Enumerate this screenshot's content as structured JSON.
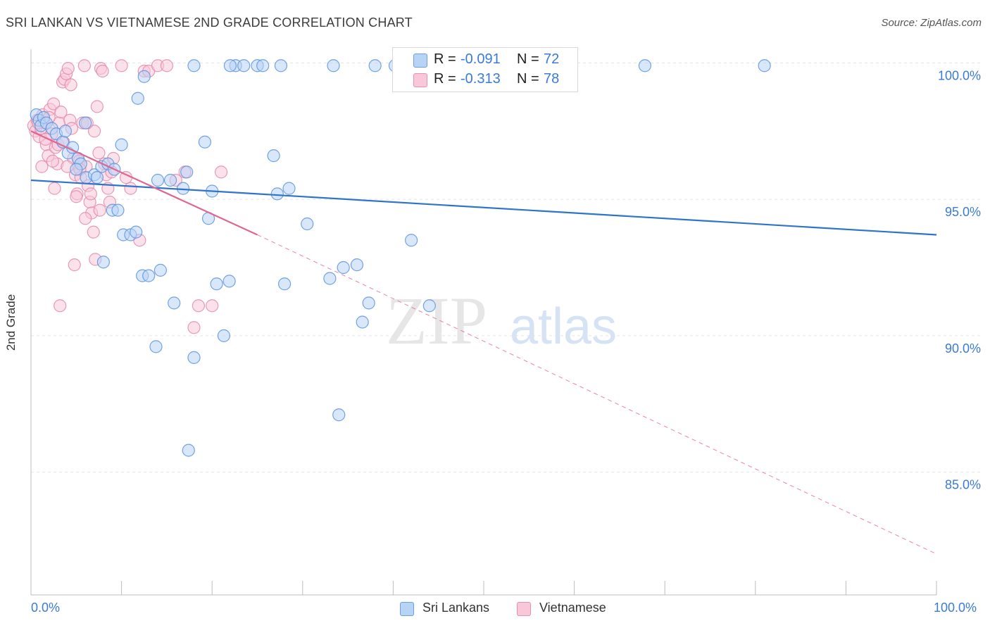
{
  "title": "SRI LANKAN VS VIETNAMESE 2ND GRADE CORRELATION CHART",
  "source": "Source: ZipAtlas.com",
  "watermark": {
    "zip": "ZIP",
    "atlas": "atlas"
  },
  "legend_top": {
    "rows": [
      {
        "r_label": "R =",
        "r_value": "-0.091",
        "n_label": "N =",
        "n_value": "72"
      },
      {
        "r_label": "R =",
        "r_value": "-0.313",
        "n_label": "N =",
        "n_value": "78"
      }
    ]
  },
  "colors": {
    "blue_fill": "#b8d4f5",
    "blue_stroke": "#5d93dc",
    "blue_line": "#2f74cc",
    "pink_fill": "#f8c8d8",
    "pink_stroke": "#e38aaa",
    "pink_line": "#e06690",
    "grid": "#e5e5e5",
    "tick_text": "#3a7bd5"
  },
  "chart_data": {
    "type": "scatter",
    "title": "SRI LANKAN VS VIETNAMESE 2ND GRADE CORRELATION CHART",
    "xlabel": "",
    "ylabel": "2nd Grade",
    "xlim": [
      0,
      100
    ],
    "ylim": [
      80.5,
      100.5
    ],
    "x_tick_labels": [
      "0.0%",
      "100.0%"
    ],
    "y_ticks": [
      85,
      90,
      95,
      100
    ],
    "y_tick_labels": [
      "85.0%",
      "90.0%",
      "95.0%",
      "100.0%"
    ],
    "legend": [
      "Sri Lankans",
      "Vietnamese"
    ],
    "series": [
      {
        "name": "Sri Lankans",
        "r": -0.091,
        "n": 72,
        "trend": {
          "x": [
            0,
            100
          ],
          "y": [
            95.7,
            93.7
          ]
        },
        "points": [
          [
            0.6,
            98.1
          ],
          [
            0.9,
            97.9
          ],
          [
            1.1,
            97.7
          ],
          [
            1.4,
            98.0
          ],
          [
            1.7,
            97.8
          ],
          [
            2.3,
            97.6
          ],
          [
            2.8,
            97.4
          ],
          [
            3.5,
            97.1
          ],
          [
            4.1,
            96.7
          ],
          [
            4.6,
            96.9
          ],
          [
            5.2,
            96.5
          ],
          [
            5.5,
            96.3
          ],
          [
            6.1,
            95.8
          ],
          [
            7.0,
            95.9
          ],
          [
            7.8,
            96.2
          ],
          [
            8.5,
            96.3
          ],
          [
            9.2,
            96.1
          ],
          [
            10.0,
            97.0
          ],
          [
            11.8,
            98.7
          ],
          [
            12.5,
            99.5
          ],
          [
            14.0,
            95.7
          ],
          [
            15.4,
            95.7
          ],
          [
            16.8,
            95.4
          ],
          [
            17.2,
            96.0
          ],
          [
            19.2,
            97.1
          ],
          [
            19.6,
            94.3
          ],
          [
            20.0,
            95.3
          ],
          [
            21.9,
            92.0
          ],
          [
            22.6,
            99.9
          ],
          [
            23.5,
            99.9
          ],
          [
            25.0,
            99.9
          ],
          [
            25.6,
            99.9
          ],
          [
            26.8,
            96.6
          ],
          [
            27.2,
            95.2
          ],
          [
            28.0,
            91.9
          ],
          [
            28.5,
            95.4
          ],
          [
            30.5,
            94.1
          ],
          [
            33.0,
            92.1
          ],
          [
            33.4,
            99.9
          ],
          [
            34.5,
            92.5
          ],
          [
            36.0,
            92.6
          ],
          [
            36.6,
            90.5
          ],
          [
            37.3,
            91.2
          ],
          [
            38.0,
            99.9
          ],
          [
            40.2,
            99.9
          ],
          [
            42.0,
            93.5
          ],
          [
            44.0,
            91.1
          ],
          [
            67.8,
            99.9
          ],
          [
            81.0,
            99.9
          ],
          [
            9.0,
            94.6
          ],
          [
            9.6,
            94.6
          ],
          [
            10.2,
            93.7
          ],
          [
            11.0,
            93.7
          ],
          [
            11.6,
            93.8
          ],
          [
            12.3,
            92.2
          ],
          [
            13.0,
            92.2
          ],
          [
            14.3,
            92.4
          ],
          [
            15.8,
            91.2
          ],
          [
            18.0,
            89.2
          ],
          [
            20.5,
            91.9
          ],
          [
            21.3,
            90.0
          ],
          [
            8.0,
            92.7
          ],
          [
            13.8,
            89.6
          ],
          [
            17.4,
            85.8
          ],
          [
            34.0,
            87.1
          ],
          [
            6.0,
            97.8
          ],
          [
            3.8,
            97.5
          ],
          [
            5.0,
            96.1
          ],
          [
            7.3,
            95.8
          ],
          [
            18.0,
            99.9
          ],
          [
            22.0,
            99.9
          ],
          [
            27.6,
            99.9
          ]
        ]
      },
      {
        "name": "Vietnamese",
        "r": -0.313,
        "n": 78,
        "trend": {
          "x": [
            0,
            25
          ],
          "y": [
            97.5,
            93.7
          ]
        },
        "trend_dashed": {
          "x": [
            25,
            100
          ],
          "y": [
            93.7,
            82.0
          ]
        },
        "points": [
          [
            0.3,
            97.7
          ],
          [
            0.5,
            97.5
          ],
          [
            0.7,
            97.9
          ],
          [
            0.9,
            97.3
          ],
          [
            1.1,
            97.6
          ],
          [
            1.3,
            98.1
          ],
          [
            1.5,
            97.8
          ],
          [
            1.7,
            97.0
          ],
          [
            1.9,
            96.6
          ],
          [
            2.1,
            98.3
          ],
          [
            2.3,
            97.4
          ],
          [
            2.5,
            98.5
          ],
          [
            2.7,
            96.9
          ],
          [
            2.9,
            96.3
          ],
          [
            3.1,
            97.8
          ],
          [
            3.3,
            98.2
          ],
          [
            3.5,
            99.3
          ],
          [
            3.7,
            99.4
          ],
          [
            3.9,
            99.6
          ],
          [
            4.1,
            99.8
          ],
          [
            4.3,
            97.9
          ],
          [
            4.5,
            97.6
          ],
          [
            4.7,
            96.5
          ],
          [
            4.9,
            95.9
          ],
          [
            5.1,
            95.2
          ],
          [
            5.3,
            96.4
          ],
          [
            5.5,
            95.8
          ],
          [
            5.7,
            97.8
          ],
          [
            5.9,
            99.9
          ],
          [
            6.1,
            96.2
          ],
          [
            6.3,
            95.5
          ],
          [
            6.5,
            94.9
          ],
          [
            6.7,
            94.5
          ],
          [
            6.9,
            93.8
          ],
          [
            7.1,
            92.8
          ],
          [
            7.3,
            98.4
          ],
          [
            7.5,
            96.7
          ],
          [
            7.7,
            99.8
          ],
          [
            7.9,
            99.7
          ],
          [
            8.1,
            96.3
          ],
          [
            8.3,
            95.9
          ],
          [
            8.5,
            95.4
          ],
          [
            8.7,
            94.9
          ],
          [
            8.9,
            96.0
          ],
          [
            9.1,
            96.5
          ],
          [
            10.0,
            99.9
          ],
          [
            10.5,
            95.8
          ],
          [
            11.0,
            95.4
          ],
          [
            12.0,
            93.5
          ],
          [
            12.5,
            99.7
          ],
          [
            13.0,
            99.7
          ],
          [
            14.0,
            99.9
          ],
          [
            15.0,
            99.9
          ],
          [
            16.0,
            95.7
          ],
          [
            17.0,
            96.0
          ],
          [
            18.0,
            90.3
          ],
          [
            18.5,
            91.1
          ],
          [
            20.0,
            91.1
          ],
          [
            21.0,
            96.0
          ],
          [
            2.0,
            98.0
          ],
          [
            3.0,
            97.0
          ],
          [
            4.0,
            96.2
          ],
          [
            5.0,
            95.1
          ],
          [
            6.0,
            94.3
          ],
          [
            4.8,
            92.6
          ],
          [
            3.2,
            91.1
          ],
          [
            2.6,
            95.4
          ],
          [
            1.2,
            96.2
          ],
          [
            7.0,
            97.5
          ],
          [
            6.2,
            97.8
          ],
          [
            0.8,
            97.8
          ],
          [
            1.6,
            97.2
          ],
          [
            2.4,
            96.4
          ],
          [
            3.6,
            97.1
          ],
          [
            4.4,
            99.2
          ],
          [
            5.4,
            96.1
          ],
          [
            6.6,
            95.2
          ],
          [
            7.6,
            94.6
          ]
        ]
      }
    ]
  },
  "bottom_legend": {
    "item1": "Sri Lankans",
    "item2": "Vietnamese"
  },
  "y_axis_label": "2nd Grade"
}
